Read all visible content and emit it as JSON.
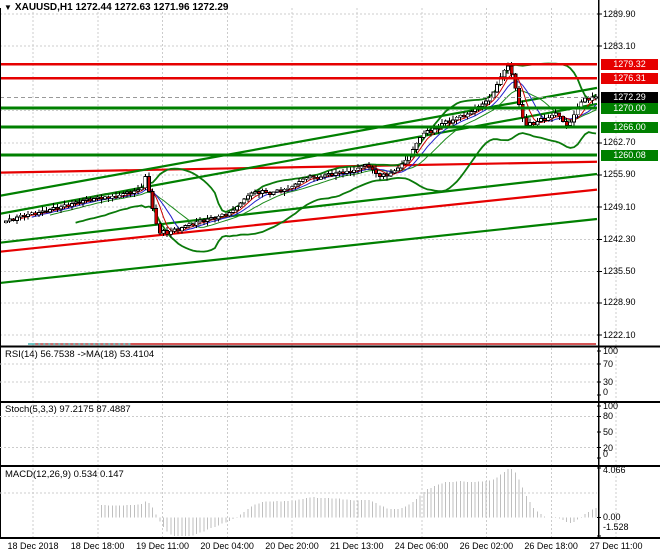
{
  "chart_data": {
    "type": "candlestick",
    "title": {
      "marker": "▼",
      "symbol": "XAUUSD,H1",
      "open": "1272.44",
      "high": "1272.63",
      "low": "1271.96",
      "close": "1272.29"
    },
    "x_labels": [
      "18 Dec 2018",
      "18 Dec 18:00",
      "19 Dec 11:00",
      "20 Dec 04:00",
      "20 Dec 20:00",
      "21 Dec 13:00",
      "24 Dec 06:00",
      "26 Dec 02:00",
      "26 Dec 18:00",
      "27 Dec 11:00"
    ],
    "price_axis": {
      "visible_gridline_labels": [
        "1289.90",
        "1283.10",
        "1262.70",
        "1255.90",
        "1249.10",
        "1242.30",
        "1235.50",
        "1228.90",
        "1222.10"
      ],
      "gridline_prices": [
        1289.9,
        1283.1,
        1276.3,
        1269.5,
        1262.7,
        1255.9,
        1249.1,
        1242.3,
        1235.5,
        1228.9,
        1222.1
      ],
      "range": [
        1222.1,
        1289.9
      ]
    },
    "levels": [
      {
        "price": 1279.32,
        "label": "1279.32",
        "kind": "resistance",
        "color": "#e60000"
      },
      {
        "price": 1276.31,
        "label": "1276.31",
        "kind": "resistance",
        "color": "#e60000"
      },
      {
        "price": 1270.0,
        "label": "1270.00",
        "kind": "support",
        "color": "#008000"
      },
      {
        "price": 1266.0,
        "label": "1266.00",
        "kind": "support",
        "color": "#008000"
      },
      {
        "price": 1260.08,
        "label": "1260.08",
        "kind": "support",
        "color": "#008000"
      }
    ],
    "current_price": {
      "price": 1272.29,
      "label": "1272.29",
      "box_color": "#000000"
    },
    "trendlines": [
      {
        "color": "#e60000",
        "p_start": 1256.4,
        "p_end": 1258.7
      },
      {
        "color": "#e60000",
        "p_start": 1239.7,
        "p_end": 1252.8
      },
      {
        "color": "#008000",
        "p_start": 1251.5,
        "p_end": 1274.3
      },
      {
        "color": "#008000",
        "p_start": 1247.7,
        "p_end": 1270.9
      },
      {
        "color": "#008000",
        "p_start": 1241.6,
        "p_end": 1256.1
      },
      {
        "color": "#008000",
        "p_start": 1233.1,
        "p_end": 1246.6
      }
    ],
    "closes": [
      1246.2,
      1246.6,
      1246.3,
      1247.0,
      1247.4,
      1247.1,
      1247.6,
      1247.9,
      1247.5,
      1248.0,
      1248.3,
      1248.1,
      1248.6,
      1249.0,
      1248.7,
      1249.2,
      1249.6,
      1249.3,
      1249.9,
      1250.2,
      1250.0,
      1250.5,
      1250.8,
      1250.4,
      1250.9,
      1251.2,
      1250.8,
      1251.3,
      1251.0,
      1251.4,
      1251.1,
      1251.6,
      1252.0,
      1252.3,
      1252.0,
      1252.5,
      1252.8,
      1253.2,
      1255.6,
      1252.4,
      1248.8,
      1245.6,
      1243.6,
      1244.2,
      1243.4,
      1244.0,
      1244.5,
      1244.1,
      1244.8,
      1245.2,
      1245.6,
      1245.3,
      1246.0,
      1246.4,
      1246.1,
      1246.6,
      1246.9,
      1246.6,
      1247.2,
      1247.6,
      1247.3,
      1248.0,
      1248.5,
      1249.2,
      1250.0,
      1250.8,
      1251.5,
      1252.1,
      1252.4,
      1252.0,
      1252.6,
      1252.2,
      1251.8,
      1252.3,
      1252.7,
      1252.4,
      1252.9,
      1253.1,
      1253.4,
      1254.0,
      1254.5,
      1255.0,
      1255.3,
      1255.7,
      1255.4,
      1255.0,
      1255.5,
      1255.9,
      1256.2,
      1255.8,
      1256.3,
      1256.6,
      1256.2,
      1256.7,
      1256.4,
      1256.9,
      1257.3,
      1257.8,
      1258.1,
      1257.6,
      1257.0,
      1256.2,
      1255.6,
      1256.1,
      1255.7,
      1256.3,
      1256.8,
      1257.4,
      1258.2,
      1259.0,
      1260.1,
      1261.3,
      1262.6,
      1263.8,
      1264.7,
      1265.3,
      1264.8,
      1265.6,
      1266.2,
      1266.8,
      1267.3,
      1266.9,
      1267.5,
      1268.1,
      1268.5,
      1268.2,
      1268.8,
      1269.3,
      1269.9,
      1270.4,
      1270.9,
      1271.5,
      1272.2,
      1273.4,
      1275.0,
      1276.6,
      1278.0,
      1278.9,
      1277.2,
      1274.2,
      1270.8,
      1268.0,
      1266.4,
      1267.0,
      1266.5,
      1267.2,
      1267.8,
      1267.4,
      1268.0,
      1268.5,
      1269.0,
      1268.3,
      1267.2,
      1266.4,
      1267.1,
      1268.6,
      1270.1,
      1271.3,
      1272.1,
      1271.7,
      1272.4,
      1272.29
    ],
    "overlays": {
      "bollinger_color": "#0a7a0a",
      "ma_fast_color": "#cc0000",
      "ma_mid_color": "#2222cc",
      "ma_slow_color": "#1a8a1a"
    },
    "panes": {
      "rsi": {
        "label": "RSI(14) 56.7538  ->MA(18) 53.4104",
        "name": "RSI",
        "period": 14,
        "value": 56.7538,
        "ma_period": 18,
        "ma_value": 53.4104,
        "axis_labels": [
          {
            "text": "100",
            "v": 100
          },
          {
            "text": "70",
            "v": 70
          },
          {
            "text": "30",
            "v": 30
          },
          {
            "text": "0",
            "v": 0
          }
        ],
        "line_color": "#b22222",
        "ma_color": "#0000bb"
      },
      "stoch": {
        "label": "Stoch(5,3,3) 97.2175 87.4887",
        "name": "Stochastic",
        "params": "5,3,3",
        "k_value": 97.2175,
        "d_value": 87.4887,
        "axis_labels": [
          {
            "text": "100",
            "v": 100
          },
          {
            "text": "80",
            "v": 80
          },
          {
            "text": "50",
            "v": 50
          },
          {
            "text": "20",
            "v": 20
          },
          {
            "text": "0",
            "v": 0
          }
        ],
        "k_color": "#20a0a0",
        "d_color": "#dd0000"
      },
      "macd": {
        "label": "MACD(12,26,9) 0.534 0.147",
        "name": "MACD",
        "params": "12,26,9",
        "value": 0.534,
        "signal_value": 0.147,
        "axis_labels": [
          {
            "text": "4.066",
            "v": 4.066
          },
          {
            "text": "0.00",
            "v": 0.0
          },
          {
            "text": "-1.528",
            "v": -1.528
          }
        ],
        "hist_color": "#bfbfbf",
        "signal_color": "#dd0000",
        "range": [
          -1.528,
          4.066
        ]
      }
    },
    "candle_colors": {
      "bull_fill": "#ffffff",
      "bear_fill": "#cc0000",
      "outline": "#000000"
    },
    "grid_color": "#cccccc"
  }
}
